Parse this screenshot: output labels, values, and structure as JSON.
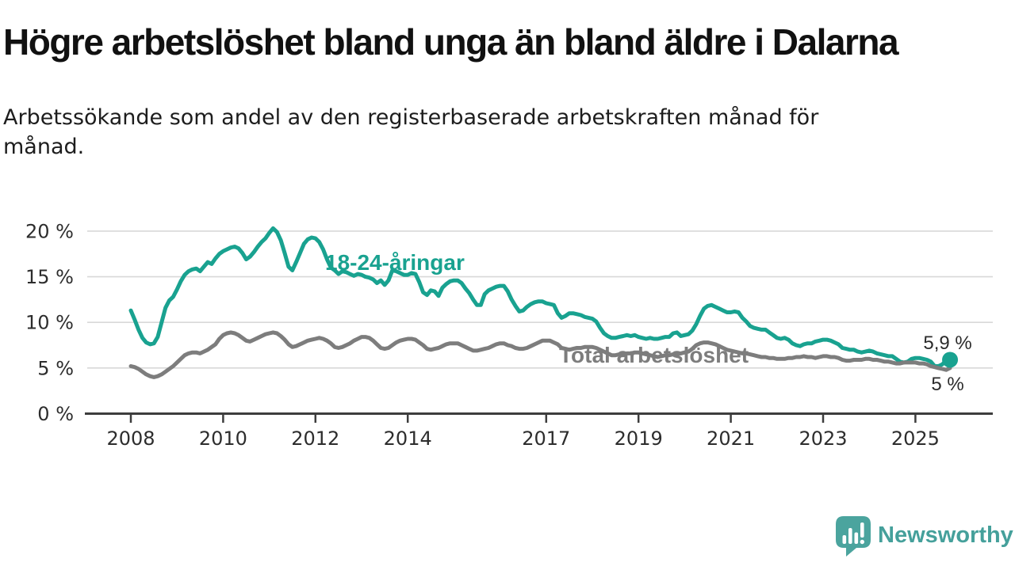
{
  "header": {
    "title": "Högre arbetslöshet bland unga än bland äldre i Dalarna",
    "subtitle_lines": [
      "Arbetssökande som andel av den registerbaserade arbetskraften månad för",
      "månad."
    ]
  },
  "colors": {
    "youth": "#19a290",
    "total": "#7d7d7d",
    "axis": "#3d3d3d",
    "grid": "#d8d8d8",
    "label_text": "#2b2b2b",
    "logo_bubble": "#4ba49e",
    "logo_text": "#45a09b"
  },
  "chart_data": {
    "type": "line",
    "x_unit": "year",
    "y_unit": "%",
    "x_axis": {
      "tick_years": [
        2008,
        2010,
        2012,
        2014,
        2017,
        2019,
        2021,
        2023,
        2025
      ],
      "tick_labels": [
        "2008",
        "2010",
        "2012",
        "2014",
        "2017",
        "2019",
        "2021",
        "2023",
        "2025"
      ],
      "range": [
        2007.0,
        2026.9
      ]
    },
    "y_axis": {
      "tick_values": [
        0,
        5,
        10,
        15,
        20
      ],
      "tick_labels": [
        "0 %",
        "5 %",
        "10 %",
        "15 %",
        "20 %"
      ],
      "range": [
        0,
        21
      ],
      "grid": true
    },
    "series": [
      {
        "name": "18-24-åringar",
        "color": "#19a290",
        "start_year": 2008,
        "interval_months": 1,
        "end_label": "5,9 %",
        "end_marker": true,
        "values": [
          11.3,
          10.3,
          9.2,
          8.3,
          7.8,
          7.6,
          7.7,
          8.4,
          10.0,
          11.6,
          12.4,
          12.8,
          13.6,
          14.5,
          15.2,
          15.6,
          15.8,
          15.9,
          15.6,
          16.1,
          16.6,
          16.4,
          17.0,
          17.5,
          17.8,
          18.0,
          18.2,
          18.3,
          18.1,
          17.6,
          16.9,
          17.2,
          17.7,
          18.3,
          18.8,
          19.2,
          19.8,
          20.3,
          19.9,
          19.0,
          17.6,
          16.1,
          15.7,
          16.6,
          17.6,
          18.6,
          19.1,
          19.3,
          19.2,
          18.8,
          18.0,
          16.9,
          16.0,
          15.7,
          15.3,
          15.6,
          15.5,
          15.3,
          15.1,
          15.3,
          15.2,
          15.0,
          14.9,
          14.7,
          14.3,
          14.6,
          14.1,
          14.6,
          15.7,
          15.6,
          15.4,
          15.2,
          15.2,
          15.4,
          15.3,
          14.4,
          13.3,
          13.0,
          13.5,
          13.4,
          12.9,
          13.8,
          14.2,
          14.5,
          14.6,
          14.6,
          14.3,
          13.7,
          13.2,
          12.5,
          11.9,
          11.9,
          13.1,
          13.5,
          13.7,
          13.9,
          14.0,
          14.0,
          13.4,
          12.5,
          11.8,
          11.2,
          11.3,
          11.7,
          12.0,
          12.2,
          12.3,
          12.3,
          12.1,
          12.0,
          11.9,
          11.0,
          10.5,
          10.7,
          11.0,
          11.0,
          10.9,
          10.8,
          10.6,
          10.5,
          10.4,
          10.1,
          9.4,
          8.8,
          8.5,
          8.3,
          8.3,
          8.4,
          8.5,
          8.6,
          8.5,
          8.6,
          8.4,
          8.3,
          8.2,
          8.3,
          8.2,
          8.2,
          8.3,
          8.4,
          8.4,
          8.8,
          8.9,
          8.5,
          8.6,
          8.7,
          9.1,
          9.8,
          10.7,
          11.5,
          11.8,
          11.9,
          11.7,
          11.5,
          11.3,
          11.1,
          11.1,
          11.2,
          11.1,
          10.5,
          10.1,
          9.6,
          9.4,
          9.3,
          9.2,
          9.2,
          8.9,
          8.6,
          8.3,
          8.2,
          8.3,
          8.1,
          7.7,
          7.5,
          7.4,
          7.6,
          7.7,
          7.7,
          7.9,
          8.0,
          8.1,
          8.1,
          8.0,
          7.8,
          7.6,
          7.2,
          7.1,
          7.0,
          7.0,
          6.8,
          6.7,
          6.8,
          6.9,
          6.8,
          6.6,
          6.5,
          6.4,
          6.3,
          6.3,
          6.0,
          5.7,
          5.6,
          5.7,
          6.0,
          6.1,
          6.1,
          6.0,
          5.9,
          5.7,
          5.2,
          5.2,
          5.4,
          5.8,
          5.9
        ]
      },
      {
        "name": "Total arbetslöshet",
        "color": "#7d7d7d",
        "start_year": 2008,
        "interval_months": 1,
        "end_label": "5 %",
        "end_marker": false,
        "values": [
          5.2,
          5.1,
          4.9,
          4.6,
          4.3,
          4.1,
          4.0,
          4.1,
          4.3,
          4.6,
          4.9,
          5.2,
          5.6,
          6.0,
          6.4,
          6.6,
          6.7,
          6.7,
          6.6,
          6.8,
          7.0,
          7.3,
          7.6,
          8.2,
          8.6,
          8.8,
          8.9,
          8.8,
          8.6,
          8.3,
          8.0,
          7.9,
          8.1,
          8.3,
          8.5,
          8.7,
          8.8,
          8.9,
          8.8,
          8.5,
          8.1,
          7.6,
          7.3,
          7.4,
          7.6,
          7.8,
          8.0,
          8.1,
          8.2,
          8.3,
          8.2,
          8.0,
          7.7,
          7.3,
          7.2,
          7.3,
          7.5,
          7.7,
          8.0,
          8.2,
          8.4,
          8.4,
          8.3,
          8.0,
          7.6,
          7.2,
          7.1,
          7.2,
          7.5,
          7.8,
          8.0,
          8.1,
          8.2,
          8.2,
          8.1,
          7.8,
          7.5,
          7.1,
          7.0,
          7.1,
          7.2,
          7.4,
          7.6,
          7.7,
          7.7,
          7.7,
          7.5,
          7.3,
          7.1,
          6.9,
          6.9,
          7.0,
          7.1,
          7.2,
          7.4,
          7.6,
          7.7,
          7.7,
          7.5,
          7.4,
          7.2,
          7.1,
          7.1,
          7.2,
          7.4,
          7.6,
          7.8,
          8.0,
          8.0,
          8.0,
          7.8,
          7.6,
          7.2,
          7.1,
          7.0,
          7.1,
          7.2,
          7.2,
          7.3,
          7.3,
          7.3,
          7.2,
          7.0,
          6.8,
          6.6,
          6.4,
          6.4,
          6.5,
          6.5,
          6.6,
          6.6,
          6.7,
          6.7,
          6.6,
          6.5,
          6.4,
          6.3,
          6.2,
          6.3,
          6.4,
          6.4,
          6.5,
          6.5,
          6.6,
          6.7,
          6.8,
          7.1,
          7.5,
          7.7,
          7.8,
          7.8,
          7.7,
          7.6,
          7.4,
          7.2,
          7.0,
          6.9,
          6.8,
          6.7,
          6.6,
          6.6,
          6.5,
          6.4,
          6.3,
          6.2,
          6.2,
          6.1,
          6.1,
          6.0,
          6.0,
          6.0,
          6.1,
          6.1,
          6.2,
          6.2,
          6.3,
          6.2,
          6.2,
          6.1,
          6.2,
          6.3,
          6.3,
          6.2,
          6.2,
          6.1,
          5.9,
          5.8,
          5.8,
          5.9,
          5.9,
          5.9,
          6.0,
          6.0,
          5.9,
          5.9,
          5.8,
          5.7,
          5.7,
          5.6,
          5.5,
          5.5,
          5.6,
          5.6,
          5.6,
          5.6,
          5.5,
          5.5,
          5.4,
          5.2,
          5.1,
          5.0,
          4.9,
          4.8,
          5.0
        ]
      }
    ]
  },
  "logo": {
    "brand": "Newsworthy"
  }
}
